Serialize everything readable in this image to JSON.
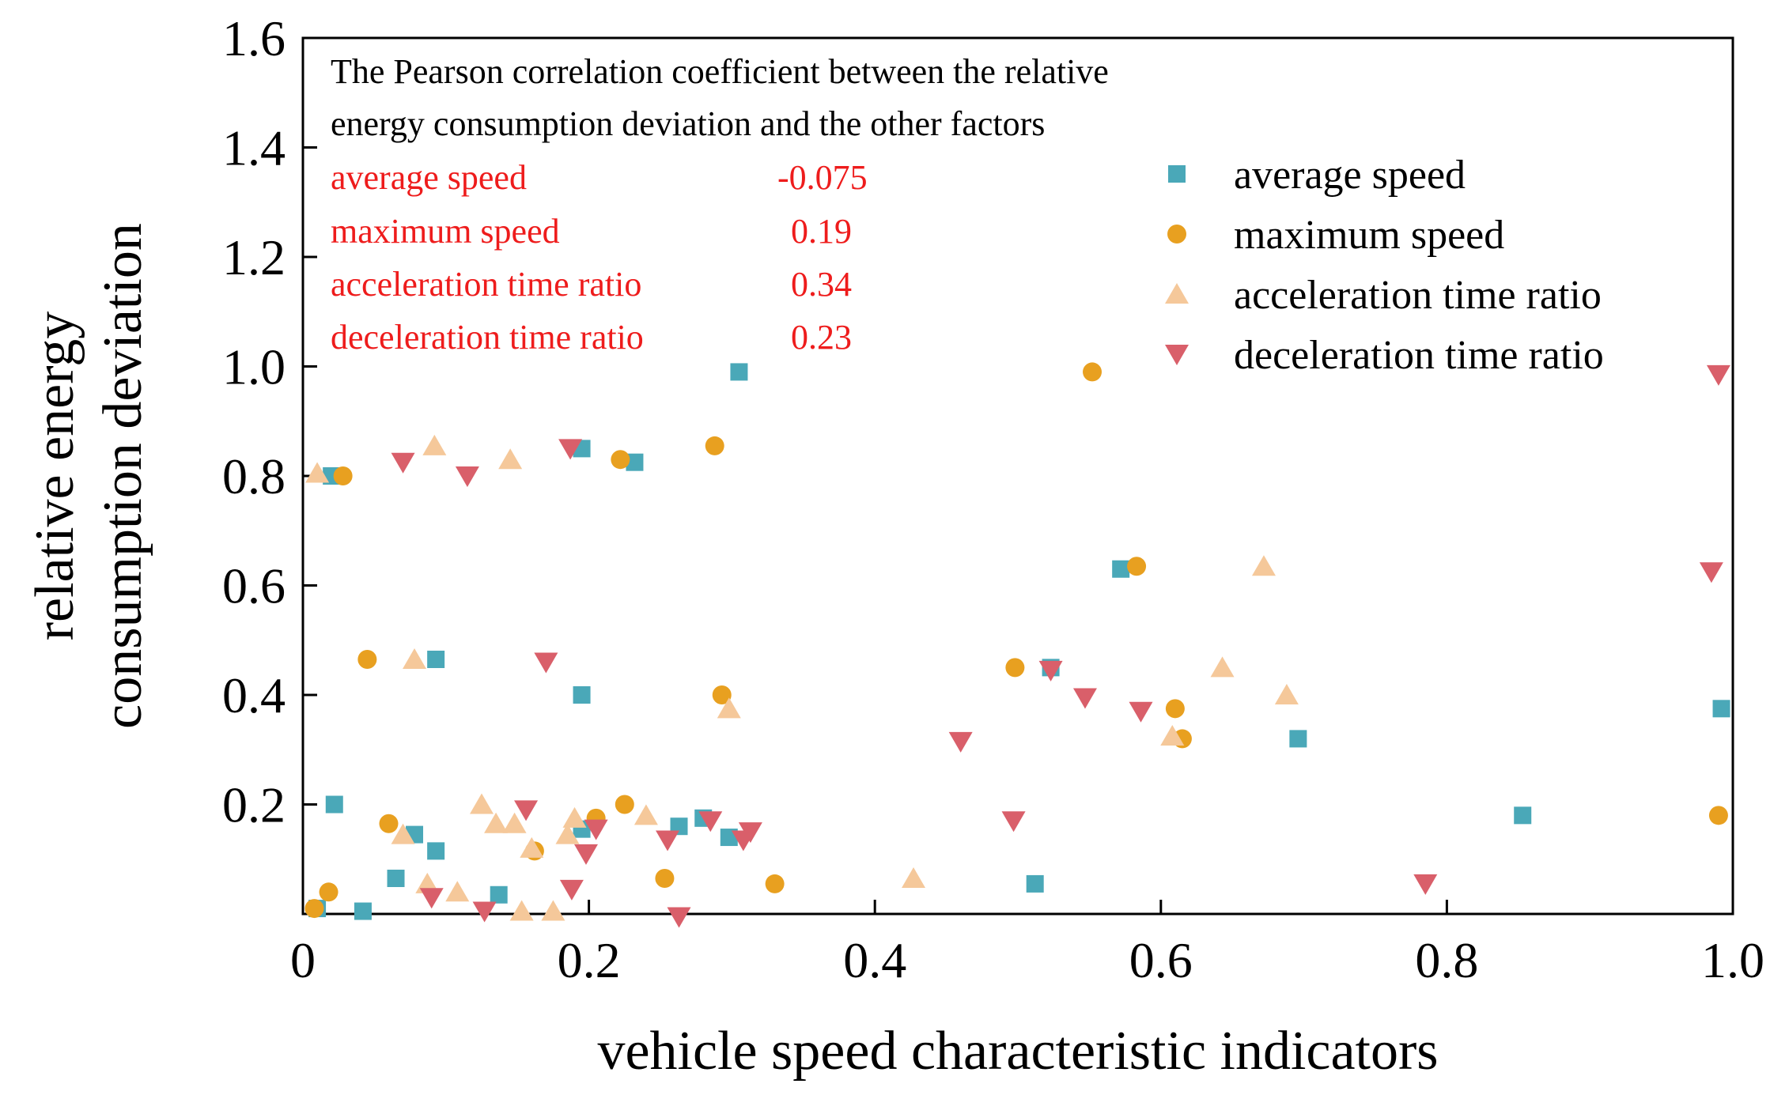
{
  "chart_data": {
    "type": "scatter",
    "xlabel": "vehicle speed characteristic indicators",
    "ylabel_lines": [
      "relative energy",
      "consumption deviation"
    ],
    "xlim": [
      0,
      1.0
    ],
    "ylim": [
      0,
      1.6
    ],
    "x_ticks": [
      "0",
      "0.2",
      "0.4",
      "0.6",
      "0.8",
      "1.0"
    ],
    "y_ticks": [
      "0.2",
      "0.4",
      "0.6",
      "0.8",
      "1.0",
      "1.2",
      "1.4",
      "1.6"
    ],
    "grid": false,
    "legend_position": "top-right",
    "annotation": {
      "title_lines": [
        "The Pearson correlation coefficient between the relative",
        "energy consumption deviation and the other factors"
      ],
      "color": "#ee1c1c",
      "rows": [
        {
          "label": "average speed",
          "value": "-0.075"
        },
        {
          "label": "maximum speed",
          "value": "0.19"
        },
        {
          "label": "acceleration time ratio",
          "value": "0.34"
        },
        {
          "label": "deceleration time ratio",
          "value": "0.23"
        }
      ]
    },
    "series": [
      {
        "name": "average speed",
        "marker": "square",
        "color": "#4aa8b8",
        "points": [
          [
            0.02,
            0.8
          ],
          [
            0.022,
            0.2
          ],
          [
            0.01,
            0.01
          ],
          [
            0.042,
            0.005
          ],
          [
            0.065,
            0.065
          ],
          [
            0.078,
            0.145
          ],
          [
            0.093,
            0.465
          ],
          [
            0.093,
            0.115
          ],
          [
            0.137,
            0.035
          ],
          [
            0.195,
            0.85
          ],
          [
            0.195,
            0.4
          ],
          [
            0.195,
            0.155
          ],
          [
            0.232,
            0.825
          ],
          [
            0.263,
            0.16
          ],
          [
            0.28,
            0.175
          ],
          [
            0.298,
            0.14
          ],
          [
            0.305,
            0.99
          ],
          [
            0.512,
            0.055
          ],
          [
            0.523,
            0.45
          ],
          [
            0.572,
            0.63
          ],
          [
            0.696,
            0.32
          ],
          [
            0.853,
            0.18
          ],
          [
            0.992,
            0.375
          ]
        ]
      },
      {
        "name": "maximum speed",
        "marker": "circle",
        "color": "#e8a020",
        "points": [
          [
            0.008,
            0.01
          ],
          [
            0.018,
            0.04
          ],
          [
            0.028,
            0.8
          ],
          [
            0.045,
            0.465
          ],
          [
            0.06,
            0.165
          ],
          [
            0.162,
            0.115
          ],
          [
            0.205,
            0.175
          ],
          [
            0.222,
            0.83
          ],
          [
            0.225,
            0.2
          ],
          [
            0.253,
            0.065
          ],
          [
            0.288,
            0.855
          ],
          [
            0.293,
            0.4
          ],
          [
            0.33,
            0.055
          ],
          [
            0.498,
            0.45
          ],
          [
            0.552,
            0.99
          ],
          [
            0.583,
            0.635
          ],
          [
            0.61,
            0.375
          ],
          [
            0.615,
            0.32
          ],
          [
            0.99,
            0.18
          ]
        ]
      },
      {
        "name": "acceleration time ratio",
        "marker": "triangle-up",
        "color": "#f5c89a",
        "points": [
          [
            0.01,
            0.805
          ],
          [
            0.07,
            0.145
          ],
          [
            0.078,
            0.465
          ],
          [
            0.087,
            0.055
          ],
          [
            0.092,
            0.855
          ],
          [
            0.108,
            0.04
          ],
          [
            0.125,
            0.2
          ],
          [
            0.135,
            0.165
          ],
          [
            0.145,
            0.83
          ],
          [
            0.148,
            0.165
          ],
          [
            0.153,
            0.005
          ],
          [
            0.16,
            0.12
          ],
          [
            0.175,
            0.005
          ],
          [
            0.185,
            0.145
          ],
          [
            0.19,
            0.175
          ],
          [
            0.24,
            0.18
          ],
          [
            0.298,
            0.375
          ],
          [
            0.427,
            0.065
          ],
          [
            0.608,
            0.325
          ],
          [
            0.643,
            0.45
          ],
          [
            0.672,
            0.635
          ],
          [
            0.688,
            0.4
          ]
        ]
      },
      {
        "name": "deceleration time ratio",
        "marker": "triangle-down",
        "color": "#d95f6a",
        "points": [
          [
            0.07,
            0.825
          ],
          [
            0.09,
            0.03
          ],
          [
            0.115,
            0.8
          ],
          [
            0.127,
            0.005
          ],
          [
            0.156,
            0.19
          ],
          [
            0.17,
            0.46
          ],
          [
            0.187,
            0.85
          ],
          [
            0.188,
            0.045
          ],
          [
            0.198,
            0.11
          ],
          [
            0.205,
            0.155
          ],
          [
            0.255,
            0.135
          ],
          [
            0.263,
            -0.005
          ],
          [
            0.285,
            0.17
          ],
          [
            0.308,
            0.135
          ],
          [
            0.313,
            0.15
          ],
          [
            0.46,
            0.315
          ],
          [
            0.497,
            0.17
          ],
          [
            0.523,
            0.445
          ],
          [
            0.547,
            0.395
          ],
          [
            0.586,
            0.37
          ],
          [
            0.785,
            0.055
          ],
          [
            0.985,
            0.625
          ],
          [
            0.99,
            0.985
          ]
        ]
      }
    ]
  }
}
